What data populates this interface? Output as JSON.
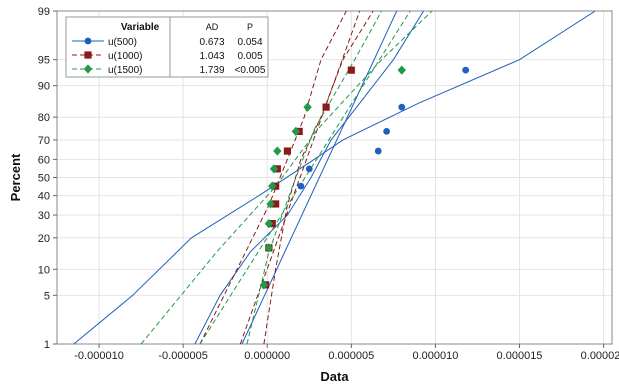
{
  "chart_data": {
    "type": "scatter",
    "subtype": "normal-probability-plot",
    "xlabel": "Data",
    "ylabel": "Percent",
    "xlim": [
      -1.25e-05,
      2.05e-05
    ],
    "ylim_percent": [
      1,
      99
    ],
    "x_ticks": [
      {
        "value": -1e-05,
        "label": "-0.000010"
      },
      {
        "value": -5e-06,
        "label": "-0.000005"
      },
      {
        "value": 0.0,
        "label": "0.000000"
      },
      {
        "value": 5e-06,
        "label": "0.000005"
      },
      {
        "value": 1e-05,
        "label": "0.000010"
      },
      {
        "value": 1.5e-05,
        "label": "0.000015"
      },
      {
        "value": 2e-05,
        "label": "0.000020"
      }
    ],
    "y_ticks": [
      1,
      5,
      10,
      20,
      30,
      40,
      50,
      60,
      70,
      80,
      90,
      95,
      99
    ],
    "grid": true,
    "legend_title": "Variable",
    "legend_position": "top-left",
    "stats_headers": {
      "ad": "AD",
      "p": "P"
    },
    "series": [
      {
        "name": "u(500)",
        "color": "#1f5fbf",
        "marker": "circle",
        "line_style": "solid",
        "ad": "0.673",
        "p": "0.054",
        "points": [
          [
            -1e-07,
            6.7
          ],
          [
            1e-07,
            16.3
          ],
          [
            4e-07,
            35.6
          ],
          [
            2e-06,
            45.2
          ],
          [
            2.5e-06,
            54.8
          ],
          [
            6.6e-06,
            64.4
          ],
          [
            7.1e-06,
            74.0
          ],
          [
            8e-06,
            83.7
          ],
          [
            1.18e-05,
            93.3
          ]
        ],
        "fit": {
          "p1": [
            -1.5e-06,
            1
          ],
          "p99": [
            7.7e-06,
            99
          ]
        },
        "ci_lower": [
          [
            -1.15e-05,
            1
          ],
          [
            -8e-06,
            5
          ],
          [
            -4.5e-06,
            20
          ],
          [
            -5e-07,
            40
          ],
          [
            2.8e-06,
            60
          ],
          [
            4.5e-06,
            70
          ],
          [
            9e-06,
            85
          ],
          [
            1.5e-05,
            95
          ],
          [
            1.95e-05,
            99
          ]
        ],
        "ci_upper": [
          [
            -4.3e-06,
            1
          ],
          [
            -2.8e-06,
            5
          ],
          [
            -1e-06,
            15
          ],
          [
            1.2e-06,
            30
          ],
          [
            2.6e-06,
            50
          ],
          [
            3.8e-06,
            70
          ],
          [
            5.5e-06,
            85
          ],
          [
            7.5e-06,
            95
          ],
          [
            9.3e-06,
            99
          ]
        ]
      },
      {
        "name": "u(1000)",
        "color": "#8b1a1a",
        "marker": "square",
        "line_style": "dash",
        "ad": "1.043",
        "p": "0.005",
        "points": [
          [
            -1e-07,
            6.7
          ],
          [
            1e-07,
            16.3
          ],
          [
            3e-07,
            26.0
          ],
          [
            5e-07,
            35.6
          ],
          [
            5e-07,
            45.2
          ],
          [
            6e-07,
            54.8
          ],
          [
            1.2e-06,
            64.4
          ],
          [
            1.9e-06,
            74.0
          ],
          [
            3.5e-06,
            83.7
          ],
          [
            5e-06,
            93.3
          ]
        ],
        "fit": {
          "p1": [
            -1.6e-06,
            1
          ],
          "p99": [
            5.5e-06,
            99
          ]
        },
        "ci_lower": [
          [
            -4e-06,
            1
          ],
          [
            -1.8e-06,
            10
          ],
          [
            1e-07,
            35
          ],
          [
            1.2e-06,
            60
          ],
          [
            2.2e-06,
            80
          ],
          [
            3.2e-06,
            95
          ],
          [
            4.7e-06,
            99
          ]
        ],
        "ci_upper": [
          [
            -2e-07,
            1
          ],
          [
            5e-07,
            10
          ],
          [
            1.2e-06,
            35
          ],
          [
            2e-06,
            60
          ],
          [
            3.2e-06,
            80
          ],
          [
            4.5e-06,
            95
          ],
          [
            6.3e-06,
            99
          ]
        ]
      },
      {
        "name": "u(1500)",
        "color": "#1f9a4a",
        "marker": "diamond",
        "line_style": "dash",
        "ad": "1.739",
        "p": "<0.005",
        "points": [
          [
            -2e-07,
            6.7
          ],
          [
            1e-07,
            16.3
          ],
          [
            1e-07,
            26.0
          ],
          [
            2e-07,
            35.6
          ],
          [
            3e-07,
            45.2
          ],
          [
            4e-07,
            54.8
          ],
          [
            6e-07,
            64.4
          ],
          [
            1.7e-06,
            74.0
          ],
          [
            2.4e-06,
            83.7
          ],
          [
            8e-06,
            93.3
          ]
        ],
        "fit": {
          "p1": [
            -4e-06,
            1
          ],
          "p99": [
            8.5e-06,
            99
          ]
        },
        "ci_lower": [
          [
            -7.5e-06,
            1
          ],
          [
            -3e-06,
            15
          ],
          [
            5e-07,
            45
          ],
          [
            3e-06,
            75
          ],
          [
            6.8e-06,
            95
          ],
          [
            9.8e-06,
            99
          ]
        ],
        "ci_upper": [
          [
            -1.2e-06,
            1
          ],
          [
            1e-07,
            15
          ],
          [
            1.5e-06,
            45
          ],
          [
            2.8e-06,
            75
          ],
          [
            5.2e-06,
            95
          ],
          [
            6.8e-06,
            99
          ]
        ]
      }
    ]
  }
}
